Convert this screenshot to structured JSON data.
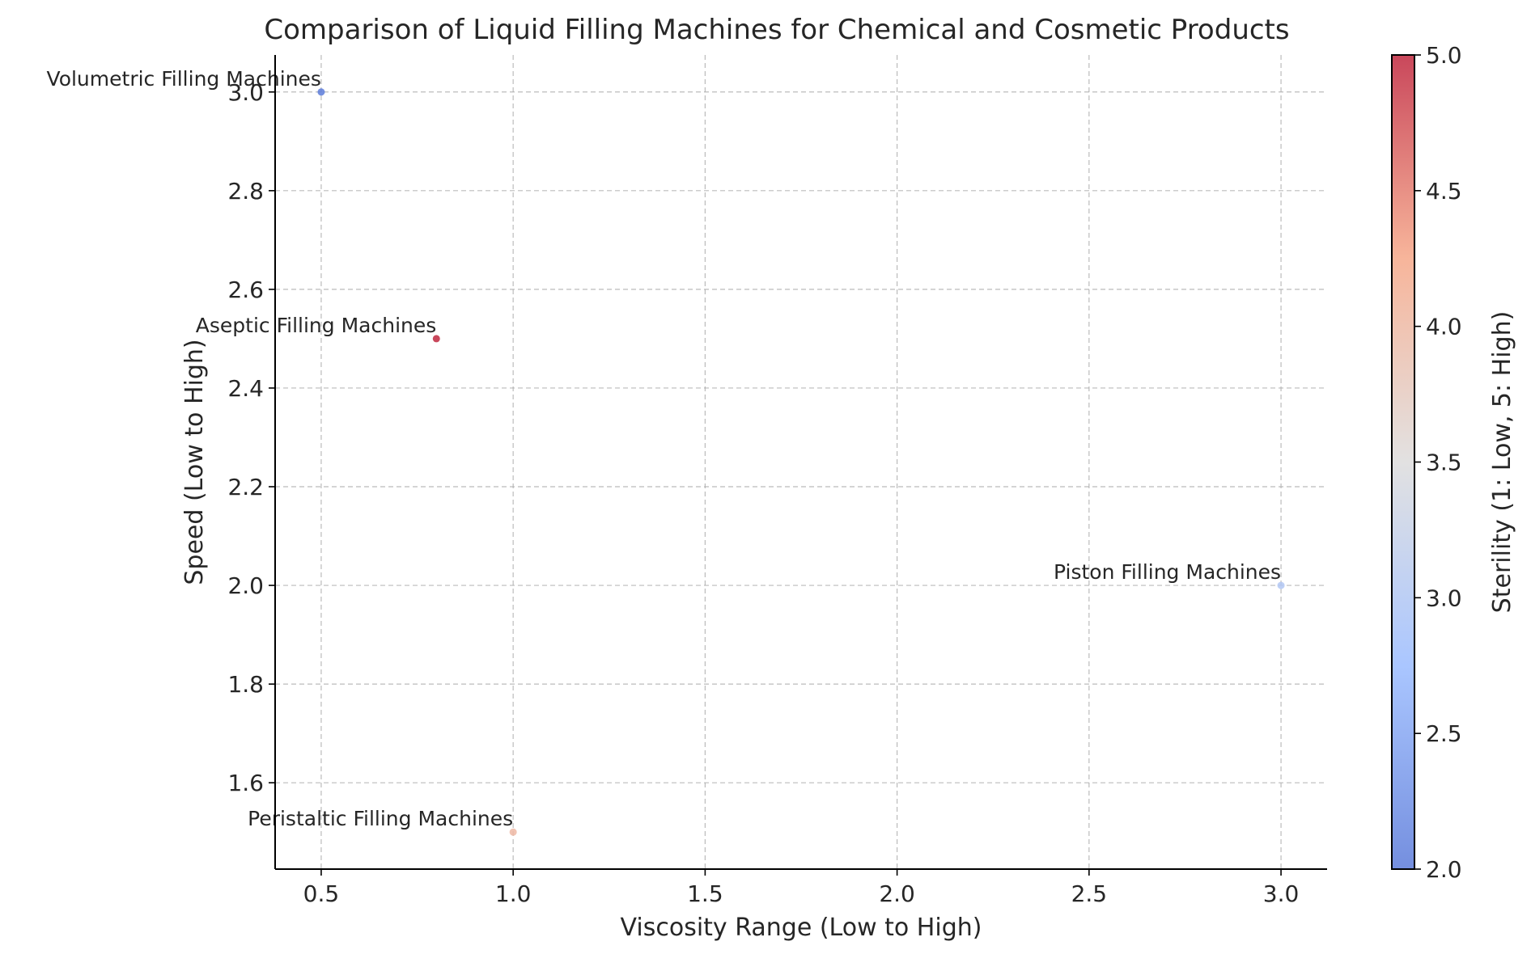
{
  "chart_data": {
    "type": "scatter",
    "title": "Comparison of Liquid Filling Machines for Chemical and Cosmetic Products",
    "xlabel": "Viscosity Range (Low to High)",
    "ylabel": "Speed (Low to High)",
    "xlim": [
      0.38,
      3.12
    ],
    "ylim": [
      1.425,
      3.075
    ],
    "xticks": [
      0.5,
      1.0,
      1.5,
      2.0,
      2.5,
      3.0
    ],
    "xtick_labels": [
      "0.5",
      "1.0",
      "1.5",
      "2.0",
      "2.5",
      "3.0"
    ],
    "yticks": [
      1.6,
      1.8,
      2.0,
      2.2,
      2.4,
      2.6,
      2.8,
      3.0
    ],
    "ytick_labels": [
      "1.6",
      "1.8",
      "2.0",
      "2.2",
      "2.4",
      "2.6",
      "2.8",
      "3.0"
    ],
    "grid": true,
    "points": [
      {
        "name": "Volumetric Filling Machines",
        "x": 0.5,
        "y": 3.0,
        "sterility": 2
      },
      {
        "name": "Aseptic Filling Machines",
        "x": 0.8,
        "y": 2.5,
        "sterility": 5
      },
      {
        "name": "Piston Filling Machines",
        "x": 3.0,
        "y": 2.0,
        "sterility": 3
      },
      {
        "name": "Peristaltic Filling Machines",
        "x": 1.0,
        "y": 1.5,
        "sterility": 4
      }
    ],
    "colorbar": {
      "label": "Sterility (1: Low, 5: High)",
      "colormap": "coolwarm",
      "range": [
        2.0,
        5.0
      ],
      "ticks": [
        2.0,
        2.5,
        3.0,
        3.5,
        4.0,
        4.5,
        5.0
      ],
      "tick_labels": [
        "2.0",
        "2.5",
        "3.0",
        "3.5",
        "4.0",
        "4.5",
        "5.0"
      ],
      "colors": [
        "#5c7bd9",
        "#9bbcff",
        "#dddcdc",
        "#f6a889",
        "#c0273e"
      ]
    }
  }
}
